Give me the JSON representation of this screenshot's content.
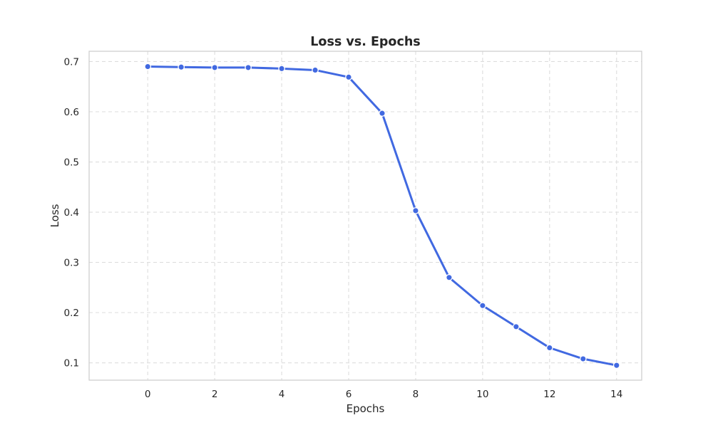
{
  "chart_data": {
    "type": "line",
    "title": "Loss vs. Epochs",
    "xlabel": "Epochs",
    "ylabel": "Loss",
    "xlim": [
      -1.75,
      14.75
    ],
    "ylim": [
      0.0655,
      0.7205
    ],
    "xticks": [
      0,
      2,
      4,
      6,
      8,
      10,
      12,
      14
    ],
    "yticks": [
      0.1,
      0.2,
      0.3,
      0.4,
      0.5,
      0.6,
      0.7
    ],
    "grid": true,
    "legend": false,
    "series": [
      {
        "color": "#4169e1",
        "x": [
          0,
          1,
          2,
          3,
          4,
          5,
          6,
          7,
          8,
          9,
          10,
          11,
          12,
          13,
          14
        ],
        "y": [
          0.69,
          0.689,
          0.688,
          0.688,
          0.686,
          0.683,
          0.669,
          0.597,
          0.403,
          0.27,
          0.214,
          0.172,
          0.13,
          0.108,
          0.095
        ]
      }
    ]
  },
  "colors": {
    "grid": "#dddddd",
    "frame": "#cccccc",
    "text": "#262626"
  }
}
